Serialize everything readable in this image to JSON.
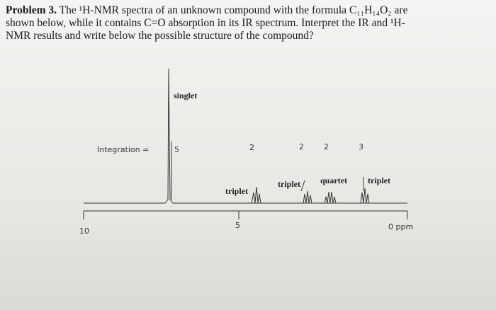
{
  "problem": {
    "label": "Problem 3.",
    "lines": [
      "The ¹H-NMR spectra of an unknown compound with the formula C₁₁H₁₄O₂ are",
      "shown below, while it contains C=O absorption in its IR spectrum. Interpret the IR and ¹H-",
      "NMR results and write below the possible structure of the compound?"
    ]
  },
  "spectrum": {
    "singlet_label": "singlet",
    "integration_label": "Integration =",
    "integrations": [
      "5",
      "2",
      "2",
      "2",
      "3"
    ],
    "multiplets": [
      "triplet",
      "triplet",
      "quartet",
      "triplet"
    ],
    "axis_labels": [
      "10",
      "5",
      "0 ppm"
    ]
  }
}
